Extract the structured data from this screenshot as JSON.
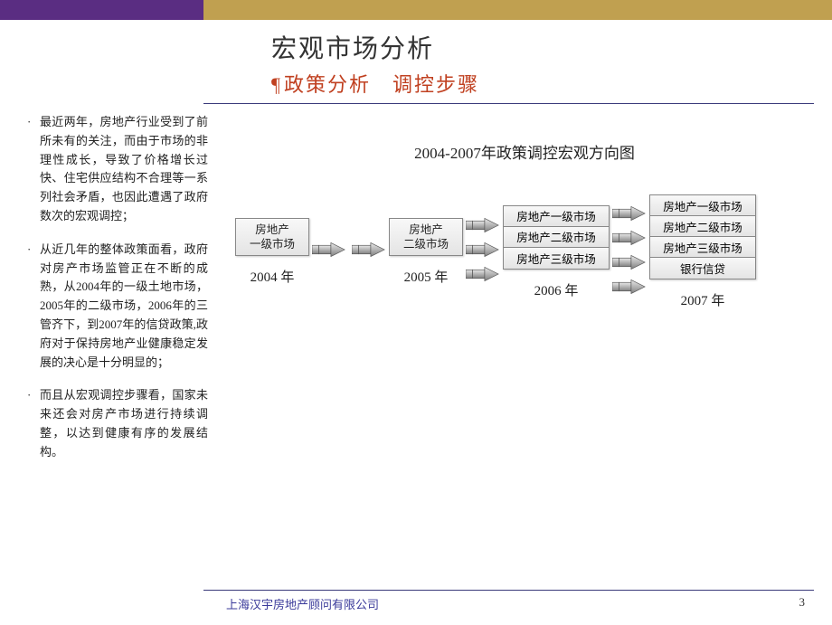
{
  "header": {
    "main_title": "宏观市场分析",
    "sub_title_prefix": "¶",
    "sub_title": "政策分析　调控步骤"
  },
  "colors": {
    "top_purple": "#5a2d82",
    "top_gold": "#c0a050",
    "accent_line": "#3a3a7a",
    "subtitle": "#c04020",
    "box_border": "#888888",
    "box_bg_top": "#f8f8f8",
    "box_bg_bottom": "#e4e4e4",
    "arrow_light": "#e8e8e8",
    "arrow_dark": "#808080",
    "text": "#222222",
    "footer_text": "#3a3a9a"
  },
  "bullets": [
    "最近两年，房地产行业受到了前所未有的关注，而由于市场的非理性成长，导致了价格增长过快、住宅供应结构不合理等一系列社会矛盾，也因此遭遇了政府数次的宏观调控；",
    "从近几年的整体政策面看，政府对房产市场监管正在不断的成熟，从2004年的一级土地市场，2005年的二级市场，2006年的三管齐下，到2007年的信贷政策,政府对于保持房地产业健康稳定发展的决心是十分明显的；",
    "而且从宏观调控步骤看，国家未来还会对房产市场进行持续调整，以达到健康有序的发展结构。"
  ],
  "chart": {
    "title": "2004-2007年政策调控宏观方向图",
    "groups": [
      {
        "year": "2004 年",
        "boxes": [
          "房地产\n一级市场"
        ],
        "arrows_before": 0,
        "arrows_after": 1
      },
      {
        "year": "2005 年",
        "boxes": [
          "房地产\n二级市场"
        ],
        "arrows_before": 1,
        "arrows_after": 0
      },
      {
        "year": "2006 年",
        "boxes": [
          "房地产一级市场",
          "房地产二级市场",
          "房地产三级市场"
        ],
        "arrows_before": 3,
        "arrows_after": 0
      },
      {
        "year": "2007 年",
        "boxes": [
          "房地产一级市场",
          "房地产二级市场",
          "房地产三级市场",
          "银行信贷"
        ],
        "arrows_before": 4,
        "arrows_after": 0
      }
    ]
  },
  "footer": {
    "company": "上海汉宇房地产顾问有限公司",
    "page": "3"
  }
}
